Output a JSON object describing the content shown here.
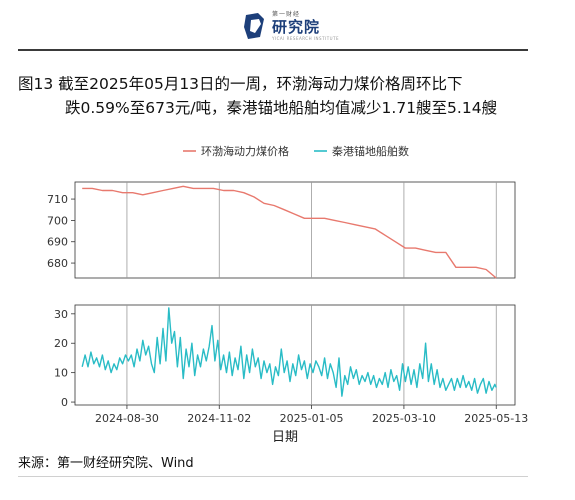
{
  "header": {
    "logo_small": "第一财经",
    "logo_main": "研究院",
    "logo_sub": "YICAI RESEARCH INSTITUTE"
  },
  "title": {
    "line1": "图13  截至2025年05月13日的一周，环渤海动力煤价格周环比下",
    "line2": "跌0.59%至673元/吨，秦港锚地船舶均值减少1.71艘至5.14艘"
  },
  "source": "来源：第一财经研究院、Wind",
  "colors": {
    "series1": "#e8796e",
    "series2": "#29bcc6"
  },
  "chart_data": {
    "type": "line",
    "xlabel": "日期",
    "x_ticks": [
      "2024-08-30",
      "2024-11-02",
      "2025-01-05",
      "2025-03-10",
      "2025-05-13"
    ],
    "legend": {
      "position": "top"
    },
    "grid": {
      "vertical": true,
      "horizontal": false
    },
    "series": [
      {
        "name": "环渤海动力煤价格",
        "panel": "top",
        "ylim": [
          673,
          718
        ],
        "yticks": [
          680,
          690,
          700,
          710
        ],
        "points": [
          [
            "2024-07-30",
            715
          ],
          [
            "2024-08-06",
            715
          ],
          [
            "2024-08-13",
            714
          ],
          [
            "2024-08-20",
            714
          ],
          [
            "2024-08-27",
            713
          ],
          [
            "2024-09-03",
            713
          ],
          [
            "2024-09-10",
            712
          ],
          [
            "2024-09-17",
            713
          ],
          [
            "2024-09-24",
            714
          ],
          [
            "2024-10-01",
            715
          ],
          [
            "2024-10-08",
            716
          ],
          [
            "2024-10-15",
            715
          ],
          [
            "2024-10-22",
            715
          ],
          [
            "2024-10-29",
            715
          ],
          [
            "2024-11-05",
            714
          ],
          [
            "2024-11-12",
            714
          ],
          [
            "2024-11-19",
            713
          ],
          [
            "2024-11-26",
            711
          ],
          [
            "2024-12-03",
            708
          ],
          [
            "2024-12-10",
            707
          ],
          [
            "2024-12-17",
            705
          ],
          [
            "2024-12-24",
            703
          ],
          [
            "2024-12-31",
            701
          ],
          [
            "2025-01-07",
            701
          ],
          [
            "2025-01-14",
            701
          ],
          [
            "2025-01-21",
            700
          ],
          [
            "2025-01-28",
            699
          ],
          [
            "2025-02-04",
            698
          ],
          [
            "2025-02-11",
            697
          ],
          [
            "2025-02-18",
            696
          ],
          [
            "2025-02-25",
            693
          ],
          [
            "2025-03-04",
            690
          ],
          [
            "2025-03-11",
            687
          ],
          [
            "2025-03-18",
            687
          ],
          [
            "2025-03-25",
            686
          ],
          [
            "2025-04-01",
            685
          ],
          [
            "2025-04-08",
            685
          ],
          [
            "2025-04-15",
            678
          ],
          [
            "2025-04-22",
            678
          ],
          [
            "2025-04-29",
            678
          ],
          [
            "2025-05-06",
            677
          ],
          [
            "2025-05-13",
            673
          ]
        ]
      },
      {
        "name": "秦港锚地船舶数",
        "panel": "bottom",
        "ylim": [
          -1,
          33
        ],
        "yticks": [
          0,
          10,
          20,
          30
        ],
        "points": [
          [
            "2024-07-30",
            12
          ],
          [
            "2024-08-01",
            16
          ],
          [
            "2024-08-03",
            12
          ],
          [
            "2024-08-05",
            17
          ],
          [
            "2024-08-07",
            13
          ],
          [
            "2024-08-09",
            15
          ],
          [
            "2024-08-11",
            12
          ],
          [
            "2024-08-13",
            16
          ],
          [
            "2024-08-15",
            11
          ],
          [
            "2024-08-17",
            14
          ],
          [
            "2024-08-19",
            10
          ],
          [
            "2024-08-21",
            13
          ],
          [
            "2024-08-23",
            11
          ],
          [
            "2024-08-25",
            15
          ],
          [
            "2024-08-27",
            13
          ],
          [
            "2024-08-29",
            16
          ],
          [
            "2024-08-31",
            14
          ],
          [
            "2024-09-02",
            16
          ],
          [
            "2024-09-04",
            12
          ],
          [
            "2024-09-06",
            18
          ],
          [
            "2024-09-08",
            14
          ],
          [
            "2024-09-10",
            21
          ],
          [
            "2024-09-12",
            16
          ],
          [
            "2024-09-14",
            19
          ],
          [
            "2024-09-16",
            13
          ],
          [
            "2024-09-18",
            10
          ],
          [
            "2024-09-20",
            22
          ],
          [
            "2024-09-22",
            13
          ],
          [
            "2024-09-24",
            25
          ],
          [
            "2024-09-26",
            14
          ],
          [
            "2024-09-28",
            32
          ],
          [
            "2024-09-30",
            20
          ],
          [
            "2024-10-02",
            24
          ],
          [
            "2024-10-04",
            12
          ],
          [
            "2024-10-06",
            22
          ],
          [
            "2024-10-08",
            8
          ],
          [
            "2024-10-10",
            18
          ],
          [
            "2024-10-12",
            12
          ],
          [
            "2024-10-14",
            20
          ],
          [
            "2024-10-16",
            9
          ],
          [
            "2024-10-18",
            16
          ],
          [
            "2024-10-20",
            12
          ],
          [
            "2024-10-22",
            18
          ],
          [
            "2024-10-24",
            14
          ],
          [
            "2024-10-26",
            19
          ],
          [
            "2024-10-28",
            26
          ],
          [
            "2024-10-30",
            14
          ],
          [
            "2024-11-01",
            21
          ],
          [
            "2024-11-03",
            11
          ],
          [
            "2024-11-05",
            16
          ],
          [
            "2024-11-07",
            10
          ],
          [
            "2024-11-09",
            17
          ],
          [
            "2024-11-11",
            9
          ],
          [
            "2024-11-13",
            15
          ],
          [
            "2024-11-15",
            11
          ],
          [
            "2024-11-17",
            19
          ],
          [
            "2024-11-19",
            8
          ],
          [
            "2024-11-21",
            16
          ],
          [
            "2024-11-23",
            10
          ],
          [
            "2024-11-25",
            18
          ],
          [
            "2024-11-27",
            12
          ],
          [
            "2024-11-29",
            15
          ],
          [
            "2024-12-01",
            8
          ],
          [
            "2024-12-03",
            14
          ],
          [
            "2024-12-05",
            10
          ],
          [
            "2024-12-07",
            13
          ],
          [
            "2024-12-09",
            6
          ],
          [
            "2024-12-11",
            12
          ],
          [
            "2024-12-13",
            9
          ],
          [
            "2024-12-15",
            18
          ],
          [
            "2024-12-17",
            10
          ],
          [
            "2024-12-19",
            14
          ],
          [
            "2024-12-21",
            7
          ],
          [
            "2024-12-23",
            13
          ],
          [
            "2024-12-25",
            9
          ],
          [
            "2024-12-27",
            16
          ],
          [
            "2024-12-29",
            11
          ],
          [
            "2024-12-31",
            14
          ],
          [
            "2025-01-02",
            8
          ],
          [
            "2025-01-04",
            13
          ],
          [
            "2025-01-06",
            10
          ],
          [
            "2025-01-08",
            14
          ],
          [
            "2025-01-10",
            12
          ],
          [
            "2025-01-12",
            9
          ],
          [
            "2025-01-14",
            15
          ],
          [
            "2025-01-16",
            8
          ],
          [
            "2025-01-18",
            13
          ],
          [
            "2025-01-20",
            10
          ],
          [
            "2025-01-22",
            5
          ],
          [
            "2025-01-24",
            15
          ],
          [
            "2025-01-26",
            2
          ],
          [
            "2025-01-28",
            9
          ],
          [
            "2025-01-30",
            6
          ],
          [
            "2025-02-01",
            12
          ],
          [
            "2025-02-03",
            8
          ],
          [
            "2025-02-05",
            11
          ],
          [
            "2025-02-07",
            6
          ],
          [
            "2025-02-09",
            9
          ],
          [
            "2025-02-11",
            7
          ],
          [
            "2025-02-13",
            10
          ],
          [
            "2025-02-15",
            6
          ],
          [
            "2025-02-17",
            9
          ],
          [
            "2025-02-19",
            5
          ],
          [
            "2025-02-21",
            8
          ],
          [
            "2025-02-23",
            6
          ],
          [
            "2025-02-25",
            10
          ],
          [
            "2025-02-27",
            5
          ],
          [
            "2025-03-01",
            11
          ],
          [
            "2025-03-03",
            7
          ],
          [
            "2025-03-05",
            9
          ],
          [
            "2025-03-07",
            4
          ],
          [
            "2025-03-09",
            13
          ],
          [
            "2025-03-11",
            7
          ],
          [
            "2025-03-13",
            12
          ],
          [
            "2025-03-15",
            6
          ],
          [
            "2025-03-17",
            11
          ],
          [
            "2025-03-19",
            5
          ],
          [
            "2025-03-21",
            13
          ],
          [
            "2025-03-23",
            8
          ],
          [
            "2025-03-25",
            20
          ],
          [
            "2025-03-27",
            7
          ],
          [
            "2025-03-29",
            13
          ],
          [
            "2025-03-31",
            6
          ],
          [
            "2025-04-02",
            11
          ],
          [
            "2025-04-04",
            5
          ],
          [
            "2025-04-06",
            8
          ],
          [
            "2025-04-08",
            4
          ],
          [
            "2025-04-10",
            6
          ],
          [
            "2025-04-12",
            8
          ],
          [
            "2025-04-14",
            4
          ],
          [
            "2025-04-16",
            8
          ],
          [
            "2025-04-18",
            5
          ],
          [
            "2025-04-20",
            9
          ],
          [
            "2025-04-22",
            5
          ],
          [
            "2025-04-24",
            7
          ],
          [
            "2025-04-26",
            4
          ],
          [
            "2025-04-28",
            8
          ],
          [
            "2025-04-30",
            3
          ],
          [
            "2025-05-02",
            6
          ],
          [
            "2025-05-04",
            8
          ],
          [
            "2025-05-06",
            3
          ],
          [
            "2025-05-08",
            7
          ],
          [
            "2025-05-10",
            4
          ],
          [
            "2025-05-12",
            6
          ],
          [
            "2025-05-13",
            5
          ]
        ]
      }
    ]
  }
}
